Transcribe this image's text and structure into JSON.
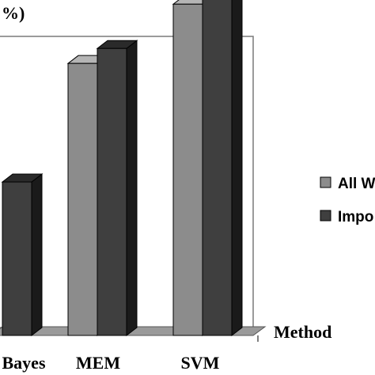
{
  "chart_data": {
    "type": "bar",
    "title_fragment": "%)",
    "xlabel": "Method",
    "categories": [
      "Bayes",
      "MEM",
      "SVM"
    ],
    "series": [
      {
        "name": "All W",
        "values": [
          null,
          43.6,
          53.1
        ]
      },
      {
        "name": "Impo",
        "values": [
          24.6,
          46.0,
          55.8
        ]
      }
    ],
    "ylim": [
      0,
      70
    ],
    "grid": false,
    "legend_placement": "right",
    "colors": {
      "all_words_front": "#8c8c8c",
      "all_words_top": "#b5b5b5",
      "all_words_side": "#5e5e5e",
      "important_front": "#3f3f3f",
      "important_top": "#2a2a2a",
      "important_side": "#1a1a1a",
      "wall": "#ffffff",
      "floor": "#9a9a9a",
      "stroke": "#000000"
    }
  }
}
